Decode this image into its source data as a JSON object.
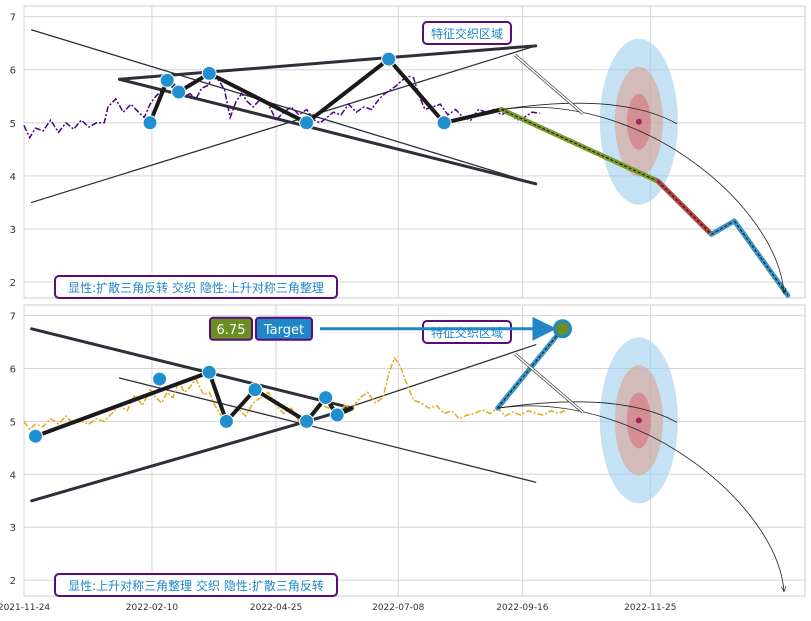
{
  "chart_data": [
    {
      "type": "line",
      "panel": "top",
      "x_ticks": [
        "2021-11-24",
        "2022-02-10",
        "2022-04-25",
        "2022-07-08",
        "2022-09-16",
        "2022-11-25"
      ],
      "y_ticks": [
        2,
        3,
        4,
        5,
        6,
        7
      ],
      "ylim": [
        1.7,
        7.2
      ],
      "grid": true,
      "price_color": "#4b0082",
      "series": [
        {
          "values": [
            [
              0,
              4.95
            ],
            [
              3,
              4.72
            ],
            [
              6,
              4.9
            ],
            [
              10,
              4.85
            ],
            [
              14,
              5.05
            ],
            [
              18,
              4.82
            ],
            [
              22,
              5.0
            ],
            [
              26,
              4.88
            ],
            [
              30,
              5.05
            ],
            [
              34,
              4.92
            ],
            [
              38,
              5.0
            ],
            [
              42,
              5.0
            ],
            [
              44,
              5.3
            ],
            [
              48,
              5.45
            ],
            [
              52,
              5.2
            ],
            [
              56,
              5.35
            ],
            [
              60,
              5.2
            ],
            [
              63,
              5.1
            ],
            [
              66,
              5.35
            ],
            [
              69,
              5.5
            ],
            [
              72,
              5.6
            ],
            [
              75,
              5.78
            ],
            [
              78,
              5.75
            ],
            [
              81,
              5.65
            ],
            [
              84,
              5.5
            ],
            [
              87,
              5.55
            ],
            [
              90,
              5.45
            ],
            [
              93,
              5.65
            ],
            [
              96,
              5.7
            ],
            [
              99,
              5.85
            ],
            [
              102,
              5.8
            ],
            [
              105,
              5.62
            ],
            [
              108,
              5.1
            ],
            [
              111,
              5.4
            ],
            [
              114,
              5.55
            ],
            [
              117,
              5.4
            ],
            [
              120,
              5.3
            ],
            [
              124,
              5.45
            ],
            [
              128,
              5.35
            ],
            [
              132,
              5.05
            ],
            [
              136,
              5.2
            ],
            [
              140,
              5.3
            ],
            [
              144,
              5.15
            ],
            [
              148,
              5.25
            ],
            [
              152,
              5.05
            ],
            [
              155,
              5.0
            ],
            [
              158,
              5.08
            ],
            [
              162,
              5.2
            ],
            [
              166,
              5.15
            ],
            [
              170,
              5.35
            ],
            [
              174,
              5.2
            ],
            [
              178,
              5.3
            ],
            [
              182,
              5.25
            ],
            [
              186,
              5.45
            ],
            [
              189,
              5.55
            ],
            [
              192,
              5.62
            ],
            [
              195,
              5.7
            ],
            [
              198,
              5.8
            ],
            [
              201,
              5.88
            ],
            [
              204,
              5.85
            ],
            [
              207,
              5.5
            ],
            [
              210,
              5.25
            ],
            [
              214,
              5.3
            ],
            [
              218,
              5.35
            ],
            [
              222,
              5.15
            ],
            [
              226,
              5.25
            ],
            [
              230,
              5.1
            ],
            [
              234,
              5.05
            ],
            [
              238,
              5.25
            ],
            [
              242,
              5.2
            ],
            [
              246,
              5.25
            ],
            [
              250,
              5.15
            ],
            [
              254,
              5.22
            ],
            [
              258,
              5.05
            ],
            [
              262,
              5.1
            ],
            [
              266,
              5.2
            ],
            [
              270,
              5.18
            ]
          ]
        }
      ],
      "pivots": [
        [
          66,
          5.0
        ],
        [
          75,
          5.8
        ],
        [
          81,
          5.58
        ],
        [
          97,
          5.93
        ],
        [
          148,
          5.0
        ],
        [
          191,
          6.2
        ],
        [
          220,
          5.0
        ]
      ],
      "zigzag": [
        [
          66,
          5.0
        ],
        [
          75,
          5.8
        ],
        [
          81,
          5.58
        ],
        [
          97,
          5.93
        ],
        [
          148,
          5.0
        ],
        [
          191,
          6.2
        ],
        [
          220,
          5.0
        ],
        [
          250,
          5.25
        ]
      ],
      "lines": [
        {
          "from": [
            4,
            6.75
          ],
          "to": [
            268,
            3.85
          ],
          "weight": "thin"
        },
        {
          "from": [
            4,
            3.5
          ],
          "to": [
            268,
            6.45
          ],
          "weight": "thin"
        },
        {
          "from": [
            50,
            5.82
          ],
          "to": [
            268,
            6.45
          ],
          "weight": "thick"
        },
        {
          "from": [
            50,
            5.82
          ],
          "to": [
            268,
            3.85
          ],
          "weight": "thick"
        }
      ],
      "forecast": [
        [
          250,
          5.25
        ],
        [
          332,
          3.9
        ],
        [
          360,
          2.9
        ],
        [
          372,
          3.15
        ],
        [
          400,
          1.75
        ]
      ],
      "forecast_colors": [
        "#7d9a2c",
        "#b5473f",
        "#3b95c8"
      ],
      "target_zone_center": [
        322,
        5.02
      ],
      "annotation_label": "特征交织区域",
      "pattern_label": "显性:扩散三角反转 交织 隐性:上升对称三角整理"
    },
    {
      "type": "line",
      "panel": "bottom",
      "x_ticks": [
        "2021-11-24",
        "2022-02-10",
        "2022-04-25",
        "2022-07-08",
        "2022-09-16",
        "2022-11-25"
      ],
      "y_ticks": [
        2,
        3,
        4,
        5,
        6,
        7
      ],
      "ylim": [
        1.7,
        7.2
      ],
      "grid": true,
      "price_color": "#e6a817",
      "series": [
        {
          "values": [
            [
              0,
              5.0
            ],
            [
              3,
              4.85
            ],
            [
              6,
              4.95
            ],
            [
              10,
              4.9
            ],
            [
              14,
              5.05
            ],
            [
              18,
              4.95
            ],
            [
              22,
              5.1
            ],
            [
              26,
              4.95
            ],
            [
              30,
              5.0
            ],
            [
              34,
              4.95
            ],
            [
              38,
              5.05
            ],
            [
              42,
              5.0
            ],
            [
              46,
              5.15
            ],
            [
              50,
              5.3
            ],
            [
              54,
              5.2
            ],
            [
              58,
              5.5
            ],
            [
              62,
              5.3
            ],
            [
              66,
              5.6
            ],
            [
              69,
              5.45
            ],
            [
              72,
              5.35
            ],
            [
              75,
              5.55
            ],
            [
              78,
              5.45
            ],
            [
              81,
              5.75
            ],
            [
              84,
              5.55
            ],
            [
              87,
              5.65
            ],
            [
              90,
              5.8
            ],
            [
              94,
              5.5
            ],
            [
              97,
              5.55
            ],
            [
              100,
              5.3
            ],
            [
              104,
              5.05
            ],
            [
              108,
              5.0
            ],
            [
              112,
              5.25
            ],
            [
              116,
              5.1
            ],
            [
              120,
              5.35
            ],
            [
              124,
              5.45
            ],
            [
              128,
              5.55
            ],
            [
              132,
              5.3
            ],
            [
              136,
              5.15
            ],
            [
              140,
              5.25
            ],
            [
              144,
              5.0
            ],
            [
              148,
              5.1
            ],
            [
              152,
              5.15
            ],
            [
              156,
              5.3
            ],
            [
              160,
              5.25
            ],
            [
              164,
              5.15
            ],
            [
              168,
              5.3
            ],
            [
              172,
              5.25
            ],
            [
              176,
              5.45
            ],
            [
              180,
              5.55
            ],
            [
              184,
              5.35
            ],
            [
              188,
              5.45
            ],
            [
              191,
              5.9
            ],
            [
              194,
              6.2
            ],
            [
              197,
              6.05
            ],
            [
              200,
              5.75
            ],
            [
              204,
              5.4
            ],
            [
              208,
              5.35
            ],
            [
              212,
              5.25
            ],
            [
              216,
              5.3
            ],
            [
              220,
              5.15
            ],
            [
              224,
              5.2
            ],
            [
              228,
              5.05
            ],
            [
              232,
              5.12
            ],
            [
              236,
              5.15
            ],
            [
              240,
              5.22
            ],
            [
              244,
              5.15
            ],
            [
              248,
              5.25
            ],
            [
              252,
              5.1
            ],
            [
              256,
              5.18
            ],
            [
              260,
              5.12
            ],
            [
              264,
              5.2
            ],
            [
              268,
              5.15
            ],
            [
              272,
              5.12
            ],
            [
              276,
              5.2
            ],
            [
              280,
              5.15
            ],
            [
              284,
              5.22
            ]
          ]
        }
      ],
      "pivots": [
        [
          6,
          4.72
        ],
        [
          71,
          5.8
        ],
        [
          97,
          5.93
        ],
        [
          106,
          5.0
        ],
        [
          121,
          5.6
        ],
        [
          148,
          5.0
        ],
        [
          158,
          5.45
        ],
        [
          164,
          5.12
        ]
      ],
      "zigzag": [
        [
          6,
          4.72
        ],
        [
          97,
          5.93
        ],
        [
          106,
          5.0
        ],
        [
          121,
          5.6
        ],
        [
          148,
          5.0
        ],
        [
          158,
          5.45
        ],
        [
          164,
          5.12
        ],
        [
          172,
          5.25
        ]
      ],
      "lines": [
        {
          "from": [
            50,
            5.82
          ],
          "to": [
            268,
            3.85
          ],
          "weight": "thin"
        },
        {
          "from": [
            148,
            5.0
          ],
          "to": [
            268,
            6.45
          ],
          "weight": "thin"
        },
        {
          "from": [
            4,
            6.75
          ],
          "to": [
            172,
            5.25
          ],
          "weight": "thick"
        },
        {
          "from": [
            4,
            3.5
          ],
          "to": [
            172,
            5.25
          ],
          "weight": "thick"
        }
      ],
      "forecast": [
        [
          248,
          5.25
        ],
        [
          282,
          6.75
        ]
      ],
      "forecast_colors": [
        "#3b95c8"
      ],
      "target_zone_center": [
        322,
        5.02
      ],
      "target_value": "6.75",
      "target_label": "Target",
      "annotation_label": "特征交织区域",
      "pattern_label": "显性:上升对称三角整理 交织 隐性:扩散三角反转"
    }
  ]
}
